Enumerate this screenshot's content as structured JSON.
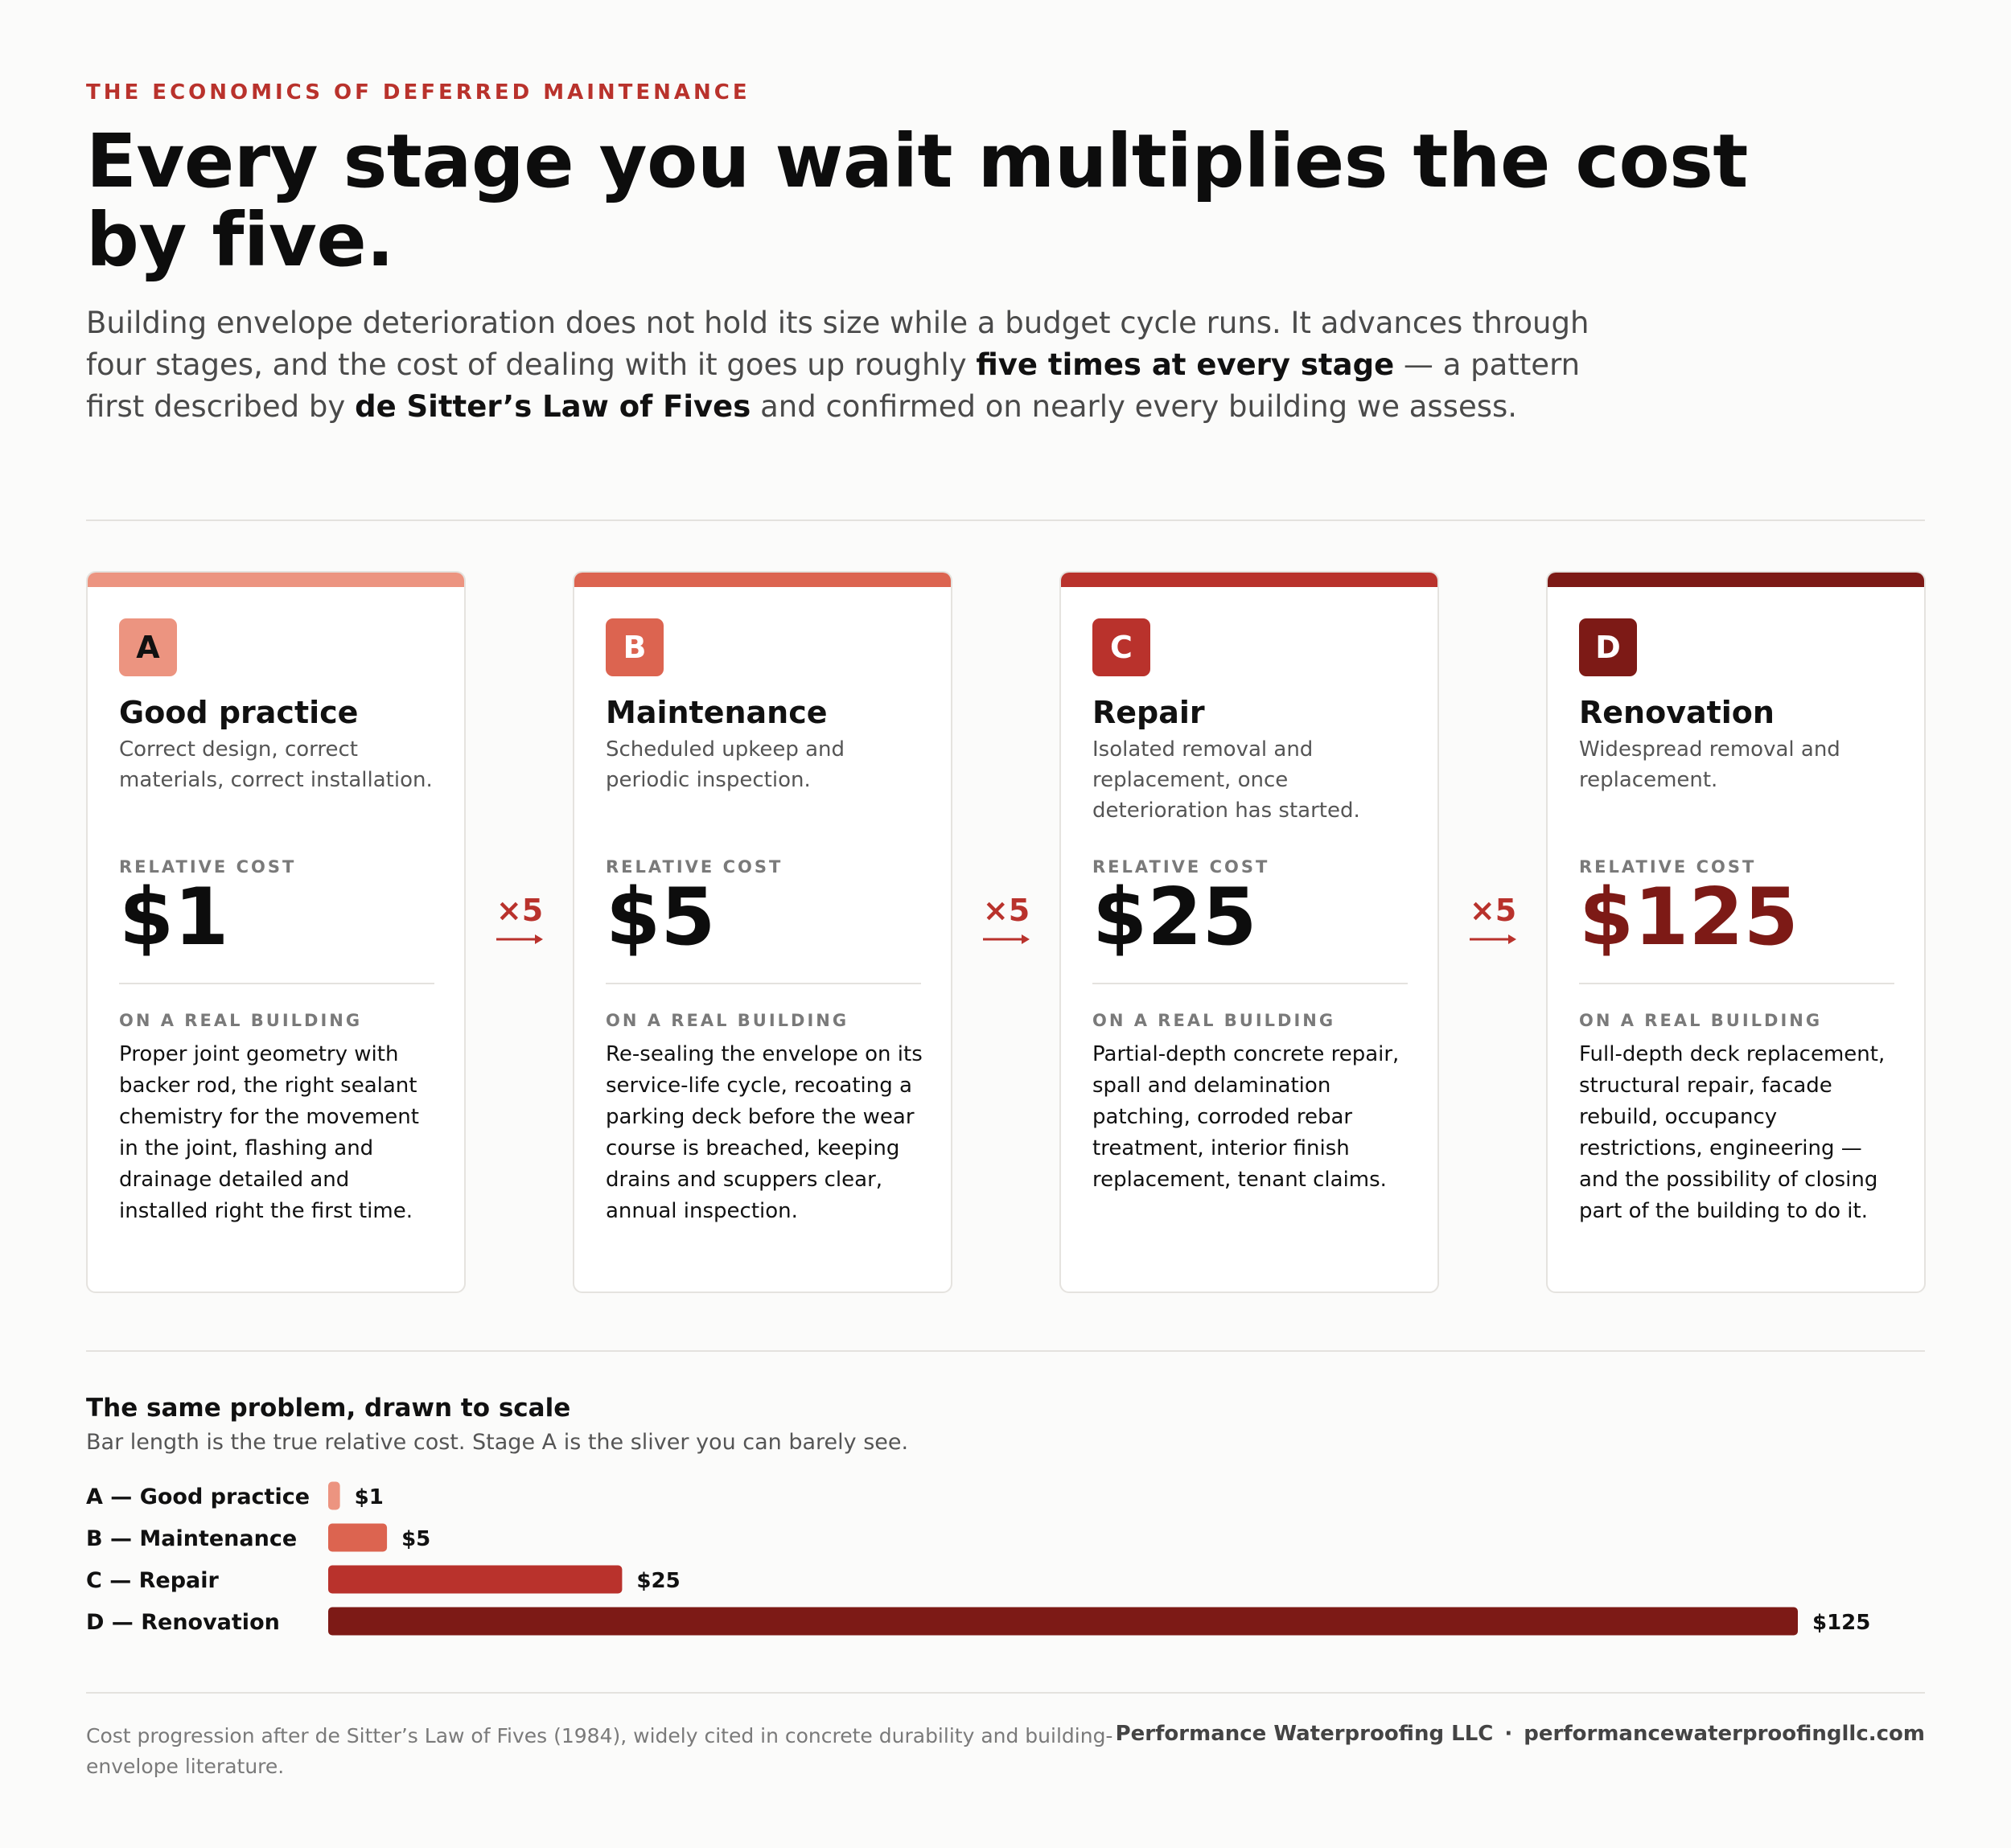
{
  "eyebrow": "THE ECONOMICS OF DEFERRED MAINTENANCE",
  "headline": "Every stage you wait multiplies the cost by five.",
  "intro": {
    "p1": "Building envelope deterioration does not hold its size while a budget cycle runs. It advances through four stages, and the cost of dealing with it goes up roughly ",
    "b1": "five times at every stage",
    "p2": " — a pattern first described by ",
    "b2": "de Sitter’s Law of Fives",
    "p3": " and confirmed on nearly every building we assess."
  },
  "labels": {
    "relative_cost": "RELATIVE COST",
    "on_real_building": "ON A REAL BUILDING",
    "multiplier": "×5"
  },
  "colors": {
    "A": "#ec9480",
    "B": "#dc6450",
    "C": "#b9322c",
    "D": "#7d1a16",
    "accent": "#b9322c"
  },
  "stages": [
    {
      "letter": "A",
      "name": "Good practice",
      "desc": "Correct design, correct materials, correct installation.",
      "cost": "$1",
      "real": "Proper joint geometry with backer rod, the right sealant chemistry for the movement in the joint, flashing and drainage detailed and installed right the first time."
    },
    {
      "letter": "B",
      "name": "Maintenance",
      "desc": "Scheduled upkeep and periodic inspection.",
      "cost": "$5",
      "real": "Re-sealing the envelope on its service-life cycle, recoating a parking deck before the wear course is breached, keeping drains and scuppers clear, annual inspection."
    },
    {
      "letter": "C",
      "name": "Repair",
      "desc": "Isolated removal and replacement, once deterioration has started.",
      "cost": "$25",
      "real": "Partial-depth concrete repair, spall and delamination patching, corroded rebar treatment, interior finish replacement, tenant claims."
    },
    {
      "letter": "D",
      "name": "Renovation",
      "desc": "Widespread removal and replacement.",
      "cost": "$125",
      "real": "Full-depth deck replacement, structural repair, facade rebuild, occupancy restrictions, engineering — and the possibility of closing part of the building to do it."
    }
  ],
  "chart_section": {
    "title": "The same problem, drawn to scale",
    "subtitle": "Bar length is the true relative cost. Stage A is the sliver you can barely see."
  },
  "chart_data": {
    "type": "bar",
    "orientation": "horizontal",
    "categories": [
      "A — Good practice",
      "B — Maintenance",
      "C — Repair",
      "D — Renovation"
    ],
    "values": [
      1,
      5,
      25,
      125
    ],
    "value_labels": [
      "$1",
      "$5",
      "$25",
      "$125"
    ],
    "bar_colors": [
      "#ec9480",
      "#dc6450",
      "#b9322c",
      "#7d1a16"
    ],
    "xlim": [
      0,
      125
    ],
    "grid": false,
    "legend": "none"
  },
  "footer": {
    "note": "Cost progression after de Sitter’s Law of Fives (1984), widely cited in concrete durability and building-envelope literature.",
    "company": "Performance Waterproofing LLC",
    "separator": "·",
    "website": "performancewaterproofingllc.com"
  }
}
